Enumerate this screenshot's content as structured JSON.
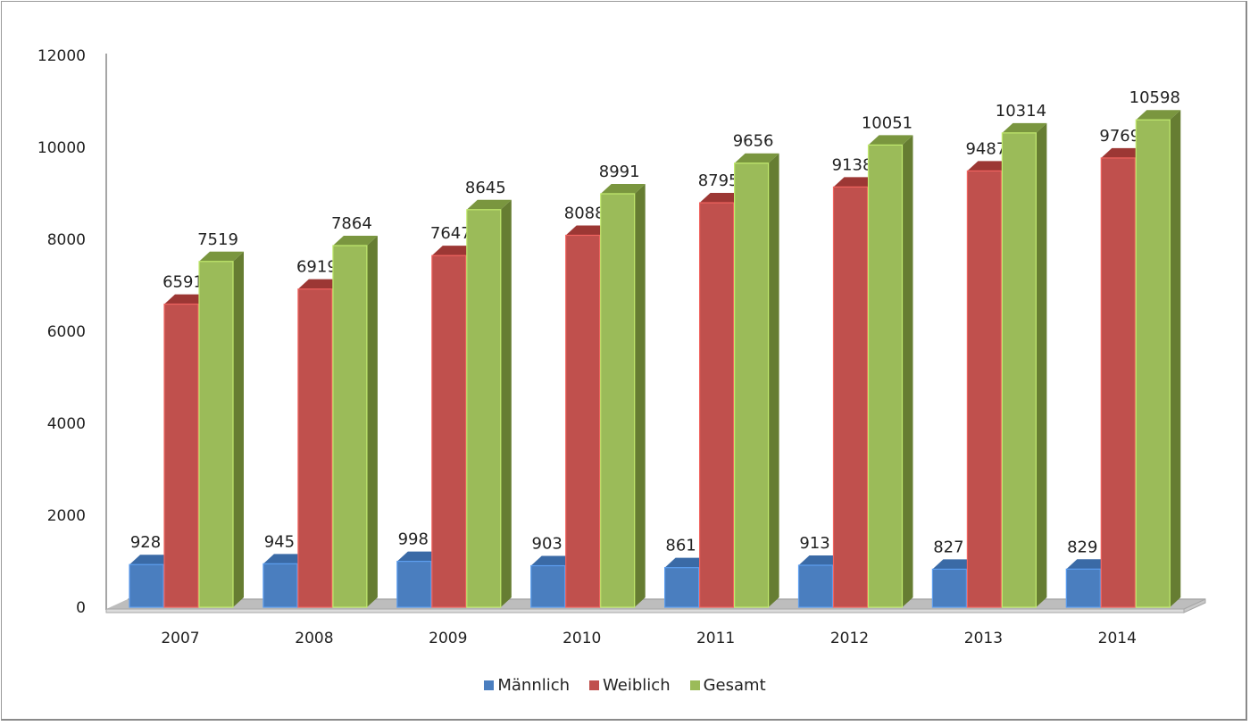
{
  "chart_data": {
    "type": "bar",
    "style": "3d-clustered-column",
    "title": "",
    "xlabel": "",
    "ylabel": "",
    "categories": [
      "2007",
      "2008",
      "2009",
      "2010",
      "2011",
      "2012",
      "2013",
      "2014"
    ],
    "series": [
      {
        "name": "Männlich",
        "color": "#4a7ebf",
        "values": [
          928,
          945,
          998,
          903,
          861,
          913,
          827,
          829
        ]
      },
      {
        "name": "Weiblich",
        "color": "#c0504d",
        "values": [
          6591,
          6919,
          7647,
          8088,
          8795,
          9138,
          9487,
          9769
        ]
      },
      {
        "name": "Gesamt",
        "color": "#9bbb59",
        "values": [
          7519,
          7864,
          8645,
          8991,
          9656,
          10051,
          10314,
          10598
        ]
      }
    ],
    "ylim": [
      0,
      12000
    ],
    "yticks": [
      0,
      2000,
      4000,
      6000,
      8000,
      10000,
      12000
    ],
    "grid": false,
    "data_labels": true,
    "legend_position": "bottom"
  },
  "legend": [
    {
      "label": "Männlich",
      "color": "#4a7ebf"
    },
    {
      "label": "Weiblich",
      "color": "#c0504d"
    },
    {
      "label": "Gesamt",
      "color": "#9bbb59"
    }
  ]
}
